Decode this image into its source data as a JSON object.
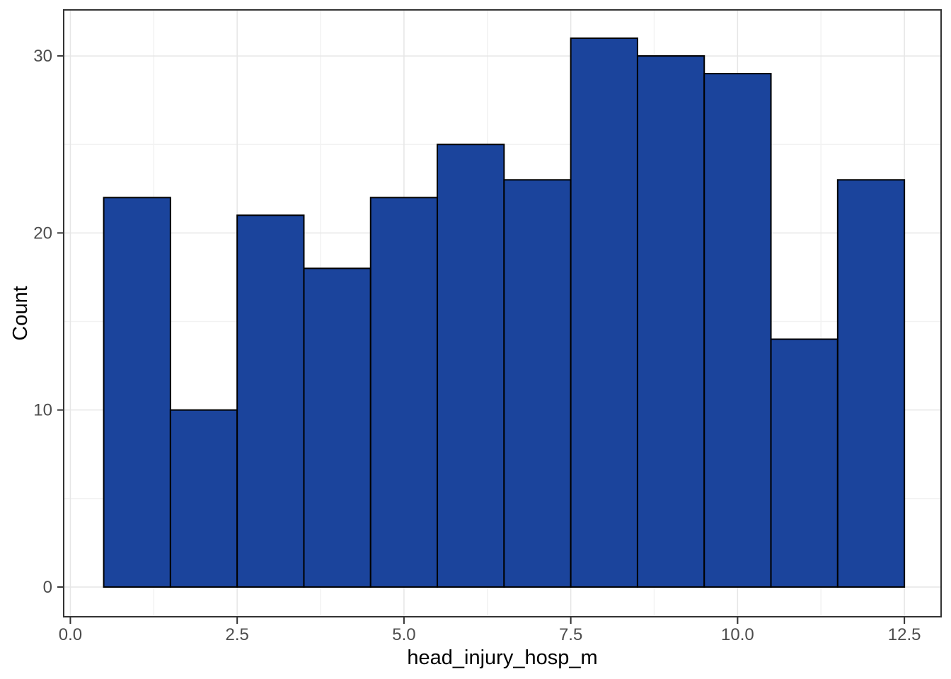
{
  "chart_data": {
    "type": "bar",
    "subtype": "histogram",
    "title": "",
    "xlabel": "head_injury_hosp_m",
    "ylabel": "Count",
    "bin_edges": [
      0.5,
      1.5,
      2.5,
      3.5,
      4.5,
      5.5,
      6.5,
      7.5,
      8.5,
      9.5,
      10.5,
      11.5,
      12.5
    ],
    "counts": [
      22,
      10,
      21,
      18,
      22,
      25,
      23,
      31,
      30,
      29,
      14,
      23
    ],
    "x_ticks": [
      0.0,
      2.5,
      5.0,
      7.5,
      10.0,
      12.5
    ],
    "x_tick_labels": [
      "0.0",
      "2.5",
      "5.0",
      "7.5",
      "10.0",
      "12.5"
    ],
    "y_ticks": [
      0,
      10,
      20,
      30
    ],
    "y_tick_labels": [
      "0",
      "10",
      "20",
      "30"
    ],
    "x_minor_gridlines": [
      1.25,
      3.75,
      6.25,
      8.75,
      11.25
    ],
    "y_minor_gridlines": [
      5,
      15,
      25
    ],
    "xlim": [
      -0.1,
      13.05
    ],
    "ylim": [
      -1.68,
      32.6
    ],
    "grid": true,
    "legend": "none",
    "colors": {
      "bar_fill": "#1B449C",
      "bar_stroke": "#000000",
      "panel_background": "#FFFFFF",
      "panel_border": "#333333",
      "grid_major": "#E6E6E6",
      "grid_minor": "#F2F2F2",
      "tick_mark": "#333333",
      "tick_label": "#4D4D4D",
      "axis_title": "#000000"
    }
  }
}
